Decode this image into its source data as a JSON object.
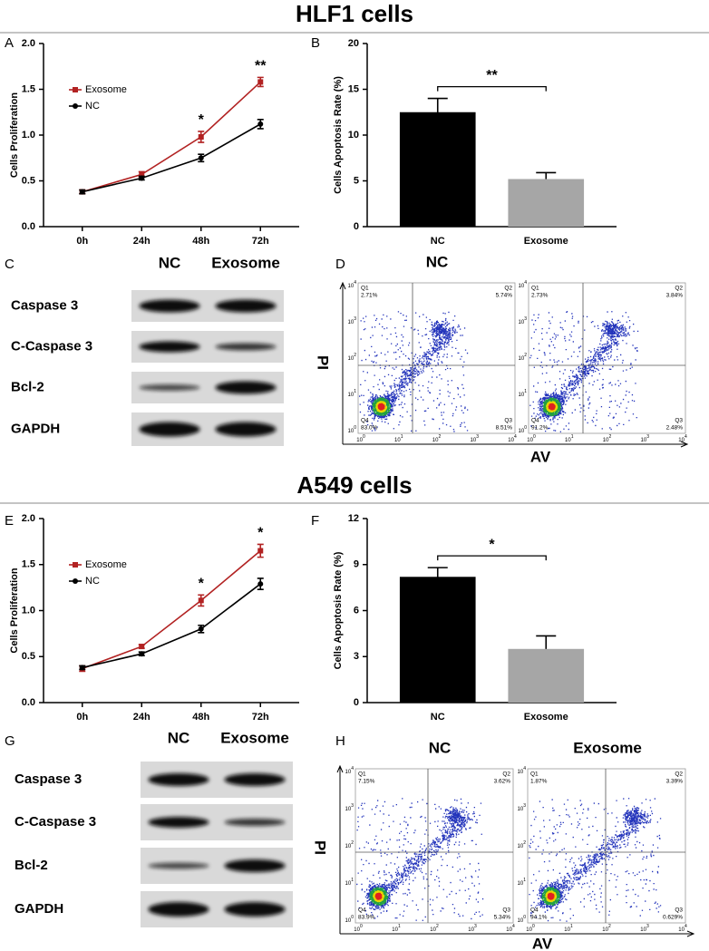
{
  "sections": [
    {
      "title": "HLF1 cells"
    },
    {
      "title": "A549 cells"
    }
  ],
  "panel_letters": [
    "A",
    "B",
    "C",
    "D",
    "E",
    "F",
    "G",
    "H"
  ],
  "chart_data": [
    {
      "type": "line",
      "ylabel": "Cells Proliferation",
      "categories": [
        "0h",
        "24h",
        "48h",
        "72h"
      ],
      "series": [
        {
          "name": "Exosome",
          "color": "#b22222",
          "values": [
            0.38,
            0.57,
            0.98,
            1.58
          ],
          "errors": [
            0.02,
            0.03,
            0.06,
            0.05
          ]
        },
        {
          "name": "NC",
          "color": "#000000",
          "values": [
            0.38,
            0.53,
            0.75,
            1.12
          ],
          "errors": [
            0.02,
            0.02,
            0.04,
            0.05
          ]
        }
      ],
      "significance": [
        null,
        null,
        "*",
        "**"
      ],
      "legend": "upper left",
      "ylim": [
        0,
        2
      ],
      "yticks": [
        {
          "value": 0,
          "label": "0.0"
        },
        0.5,
        {
          "value": 1,
          "label": "1.0"
        },
        1.5,
        {
          "value": 2,
          "label": "2.0"
        }
      ]
    },
    {
      "type": "bar",
      "ylabel": "Cells Apoptosis Rate (%)",
      "categories": [
        "NC",
        "Exosome"
      ],
      "values": [
        12.5,
        5.2
      ],
      "errors": [
        1.5,
        0.7
      ],
      "colors": [
        "#000000",
        "#a6a6a6"
      ],
      "significance": "**",
      "ylim": [
        0,
        20
      ],
      "yticks": [
        0,
        5,
        10,
        15,
        20
      ]
    },
    {
      "type": "line",
      "ylabel": "Cells Proliferation",
      "categories": [
        "0h",
        "24h",
        "48h",
        "72h"
      ],
      "series": [
        {
          "name": "Exosome",
          "color": "#b22222",
          "values": [
            0.37,
            0.61,
            1.11,
            1.65
          ],
          "errors": [
            0.03,
            0.02,
            0.06,
            0.07
          ]
        },
        {
          "name": "NC",
          "color": "#000000",
          "values": [
            0.38,
            0.53,
            0.8,
            1.29
          ],
          "errors": [
            0.02,
            0.02,
            0.04,
            0.06
          ]
        }
      ],
      "significance": [
        null,
        null,
        "*",
        "*"
      ],
      "legend": "upper left",
      "ylim": [
        0,
        2
      ],
      "yticks": [
        {
          "value": 0,
          "label": "0.0"
        },
        0.5,
        {
          "value": 1,
          "label": "1.0"
        },
        1.5,
        {
          "value": 2,
          "label": "2.0"
        }
      ]
    },
    {
      "type": "bar",
      "ylabel": "Cells Apoptosis Rate (%)",
      "categories": [
        "NC",
        "Exosome"
      ],
      "values": [
        8.2,
        3.5
      ],
      "errors": [
        0.6,
        0.85
      ],
      "colors": [
        "#000000",
        "#a6a6a6"
      ],
      "significance": "*",
      "ylim": [
        0,
        12
      ],
      "yticks": [
        0,
        3,
        6,
        9,
        12
      ]
    }
  ],
  "blots": [
    {
      "columns": [
        "NC",
        "Exosome"
      ],
      "rows": [
        "Caspase 3",
        "C-Caspase 3",
        "Bcl-2",
        "GAPDH"
      ]
    },
    {
      "columns": [
        "NC",
        "Exosome"
      ],
      "rows": [
        "Caspase 3",
        "C-Caspase 3",
        "Bcl-2",
        "GAPDH"
      ]
    }
  ],
  "flow": [
    {
      "titles": [
        "NC"
      ],
      "ylabel": "PI",
      "xlabel": "AV",
      "tick_base": "10",
      "tick_exponents": [
        "0",
        "1",
        "2",
        "3",
        "4"
      ],
      "plots": [
        {
          "quadrants": [
            {
              "name": "Q1",
              "value": "2.71%"
            },
            {
              "name": "Q2",
              "value": "5.74%"
            },
            {
              "name": "Q4",
              "value": "83.0%"
            },
            {
              "name": "Q3",
              "value": "8.51%"
            }
          ]
        },
        {
          "quadrants": [
            {
              "name": "Q1",
              "value": "2.73%"
            },
            {
              "name": "Q2",
              "value": "3.84%"
            },
            {
              "name": "Q4",
              "value": "91.2%"
            },
            {
              "name": "Q3",
              "value": "2.48%"
            }
          ]
        }
      ]
    },
    {
      "titles": [
        "NC",
        "Exosome"
      ],
      "ylabel": "PI",
      "xlabel": "AV",
      "tick_base": "10",
      "tick_exponents": [
        "0",
        "1",
        "2",
        "3",
        "4"
      ],
      "plots": [
        {
          "quadrants": [
            {
              "name": "Q1",
              "value": "7.15%"
            },
            {
              "name": "Q2",
              "value": "3.62%"
            },
            {
              "name": "Q4",
              "value": "83.9%"
            },
            {
              "name": "Q3",
              "value": "5.34%"
            }
          ]
        },
        {
          "quadrants": [
            {
              "name": "Q1",
              "value": "1.87%"
            },
            {
              "name": "Q2",
              "value": "3.39%"
            },
            {
              "name": "Q4",
              "value": "94.1%"
            },
            {
              "name": "Q3",
              "value": "0.629%"
            }
          ]
        }
      ]
    }
  ]
}
